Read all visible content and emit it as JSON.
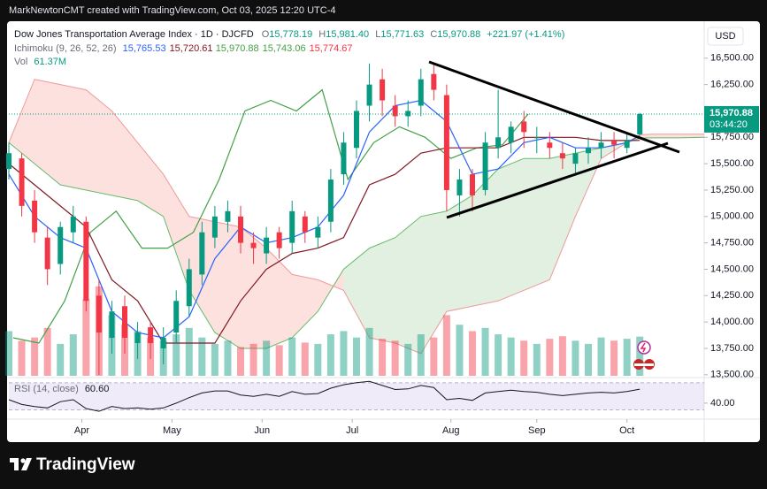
{
  "header": {
    "author_line": "MarkNewtonCMT created with TradingView.com, Oct 03, 2025 12:20 UTC-4",
    "brand": "TradingView"
  },
  "chart_data": {
    "type": "candlestick",
    "title": "Dow Jones Transportation Average Index · 1D · DJCFD",
    "legend": {
      "o_label": "O",
      "open": "15,778.19",
      "h_label": "H",
      "high": "15,981.40",
      "l_label": "L",
      "low": "15,771.63",
      "c_label": "C",
      "close": "15,970.88",
      "change": "+221.97 (+1.41%)"
    },
    "currency": "USD",
    "last_price_label": "15,970.88",
    "countdown": "03:44:20",
    "xlim": [
      0,
      162
    ],
    "xticks": [
      {
        "value": 17,
        "label": "Apr"
      },
      {
        "value": 38,
        "label": "May"
      },
      {
        "value": 59,
        "label": "Jun"
      },
      {
        "value": 80,
        "label": "Jul"
      },
      {
        "value": 103,
        "label": "Aug"
      },
      {
        "value": 123,
        "label": "Sep"
      },
      {
        "value": 144,
        "label": "Oct"
      }
    ],
    "ylim": [
      13490,
      16800
    ],
    "yticks": [
      {
        "value": 16500,
        "label": "16,500.00"
      },
      {
        "value": 16250,
        "label": "16,250.00"
      },
      {
        "value": 16000,
        "label": "16,000.00"
      },
      {
        "value": 15750,
        "label": "15,750.00"
      },
      {
        "value": 15500,
        "label": "15,500.00"
      },
      {
        "value": 15250,
        "label": "15,250.00"
      },
      {
        "value": 15000,
        "label": "15,000.00"
      },
      {
        "value": 14750,
        "label": "14,750.00"
      },
      {
        "value": 14500,
        "label": "14,500.00"
      },
      {
        "value": 14250,
        "label": "14,250.00"
      },
      {
        "value": 14000,
        "label": "14,000.00"
      },
      {
        "value": 13750,
        "label": "13,750.00"
      },
      {
        "value": 13500,
        "label": "13,500.00"
      }
    ],
    "grid": false,
    "candles": {
      "up_color": "#089981",
      "down_color": "#f23645",
      "x": [
        0,
        3,
        6,
        9,
        12,
        15,
        18,
        21,
        24,
        27,
        30,
        33,
        36,
        39,
        42,
        45,
        48,
        51,
        54,
        57,
        60,
        63,
        66,
        69,
        72,
        75,
        78,
        81,
        84,
        87,
        90,
        93,
        96,
        99,
        102,
        105,
        108,
        111,
        114,
        117,
        120,
        123,
        126,
        129,
        132,
        135,
        138,
        141,
        144,
        147
      ],
      "open": [
        15450,
        15550,
        15150,
        14800,
        14550,
        14850,
        14950,
        14250,
        13850,
        14150,
        13800,
        13950,
        13750,
        13900,
        14150,
        14450,
        14800,
        14950,
        15000,
        14750,
        14650,
        14850,
        14750,
        15000,
        14800,
        14950,
        15400,
        15650,
        16050,
        16300,
        16050,
        15950,
        16050,
        16350,
        16150,
        15200,
        15400,
        15250,
        15650,
        15700,
        15900,
        15750,
        15700,
        15600,
        15500,
        15600,
        15650,
        15720,
        15650,
        15778.19
      ],
      "high": [
        15700,
        15600,
        15250,
        14900,
        14950,
        15100,
        15000,
        14400,
        14200,
        14250,
        14000,
        14000,
        13950,
        14300,
        14600,
        14950,
        15100,
        15150,
        15100,
        14850,
        14900,
        14900,
        15150,
        15050,
        15000,
        15450,
        15800,
        16100,
        16450,
        16400,
        16150,
        16100,
        16400,
        16450,
        16250,
        15450,
        15450,
        15800,
        16200,
        15900,
        16000,
        15850,
        15800,
        15700,
        15650,
        15750,
        15800,
        15800,
        15800,
        15981.4
      ],
      "low": [
        15350,
        15000,
        14750,
        14350,
        14450,
        14750,
        14100,
        13500,
        13700,
        13700,
        13650,
        13650,
        13600,
        13800,
        14050,
        14350,
        14700,
        14850,
        14650,
        14550,
        14550,
        14600,
        14650,
        14750,
        14700,
        14850,
        15300,
        15550,
        15900,
        15950,
        15850,
        15850,
        15950,
        16100,
        15050,
        15000,
        15050,
        15200,
        15550,
        15600,
        15650,
        15600,
        15550,
        15450,
        15400,
        15500,
        15550,
        15550,
        15600,
        15771.63
      ],
      "close": [
        15600,
        15100,
        14850,
        14500,
        14900,
        15000,
        14200,
        13900,
        14100,
        13850,
        13900,
        13800,
        13850,
        14200,
        14500,
        14850,
        15000,
        15050,
        14750,
        14700,
        14800,
        14700,
        15050,
        14850,
        14900,
        15350,
        15700,
        16000,
        16250,
        16100,
        15950,
        16000,
        16300,
        16200,
        15250,
        15350,
        15200,
        15700,
        15750,
        15850,
        15800,
        15750,
        15650,
        15550,
        15600,
        15650,
        15700,
        15680,
        15720,
        15970.88
      ]
    },
    "ichimoku": {
      "label": "Ichimoku (9, 26, 52, 26)",
      "legend_values": [
        {
          "text": "15,765.53",
          "color": "#2962ff"
        },
        {
          "text": "15,720.61",
          "color": "#801922"
        },
        {
          "text": "15,970.88",
          "color": "#43a047"
        },
        {
          "text": "15,743.06",
          "color": "#43a047"
        },
        {
          "text": "15,774.67",
          "color": "#f23645"
        }
      ],
      "conversion": {
        "color": "#2962ff",
        "x": [
          0,
          6,
          12,
          18,
          24,
          30,
          36,
          42,
          48,
          54,
          60,
          66,
          72,
          78,
          84,
          90,
          96,
          102,
          108,
          114,
          120,
          126,
          132,
          138,
          144,
          147
        ],
        "values": [
          15400,
          15000,
          14800,
          14700,
          14100,
          13900,
          13850,
          14050,
          14600,
          14900,
          14750,
          14800,
          14900,
          15200,
          15800,
          16050,
          16100,
          15900,
          15400,
          15450,
          15700,
          15750,
          15650,
          15650,
          15700,
          15765.53
        ]
      },
      "base": {
        "color": "#801922",
        "x": [
          0,
          6,
          12,
          18,
          24,
          30,
          36,
          42,
          48,
          54,
          60,
          66,
          72,
          78,
          84,
          90,
          96,
          102,
          108,
          114,
          120,
          126,
          132,
          138,
          144,
          147
        ],
        "values": [
          15500,
          15300,
          15100,
          14900,
          14400,
          14200,
          13800,
          13800,
          13800,
          14200,
          14500,
          14650,
          14700,
          14800,
          15300,
          15400,
          15600,
          15650,
          15650,
          15650,
          15750,
          15750,
          15750,
          15720,
          15720,
          15720.61
        ]
      },
      "lagging": {
        "color": "#43a047",
        "x": [
          1,
          7,
          13,
          19,
          25,
          31,
          37,
          43,
          49,
          55,
          61,
          67,
          73,
          79,
          85,
          91,
          97,
          103,
          109,
          115,
          121
        ],
        "values": [
          13850,
          13800,
          14200,
          14850,
          15050,
          14700,
          14700,
          14850,
          15350,
          16000,
          16100,
          16000,
          16200,
          15350,
          15700,
          15850,
          15750,
          15550,
          15650,
          15680,
          15970.88
        ]
      },
      "span_a": {
        "color": "#66bb6a",
        "x": [
          0,
          6,
          12,
          18,
          24,
          30,
          36,
          42,
          48,
          54,
          60,
          66,
          72,
          78,
          84,
          90,
          96,
          102,
          108,
          114,
          120,
          126,
          132,
          138,
          144,
          147,
          150,
          156,
          162
        ],
        "values": [
          15700,
          15500,
          15300,
          15250,
          15200,
          15150,
          15000,
          14300,
          13900,
          13750,
          13750,
          13850,
          14100,
          14500,
          14700,
          14800,
          15000,
          15050,
          15200,
          15450,
          15550,
          15550,
          15600,
          15650,
          15700,
          15743.06,
          15745,
          15745,
          15750
        ]
      },
      "span_b": {
        "color": "#ef9a9a",
        "x": [
          0,
          6,
          12,
          18,
          24,
          30,
          36,
          42,
          48,
          54,
          60,
          66,
          72,
          78,
          84,
          90,
          96,
          102,
          108,
          114,
          120,
          126,
          132,
          138,
          144,
          147,
          150,
          156,
          162
        ],
        "values": [
          15700,
          16300,
          16250,
          16200,
          16000,
          15700,
          15400,
          15000,
          14950,
          14900,
          14700,
          14450,
          14400,
          14300,
          13850,
          13800,
          13700,
          14100,
          14150,
          14200,
          14300,
          14400,
          15000,
          15550,
          15700,
          15774.67,
          15780,
          15780,
          15780
        ]
      },
      "cloud_up_color": "rgba(67,160,71,0.16)",
      "cloud_down_color": "rgba(244,67,54,0.16)"
    },
    "volume": {
      "label": "Vol",
      "value_label": "61.37M",
      "ylim": [
        0,
        180
      ],
      "up_color": "rgba(8,153,129,0.45)",
      "down_color": "rgba(242,54,69,0.45)",
      "values": [
        70,
        55,
        60,
        75,
        50,
        65,
        120,
        140,
        95,
        80,
        70,
        60,
        55,
        65,
        75,
        60,
        50,
        55,
        45,
        50,
        55,
        48,
        60,
        52,
        50,
        65,
        70,
        60,
        75,
        58,
        55,
        50,
        65,
        60,
        95,
        80,
        70,
        75,
        65,
        60,
        55,
        50,
        58,
        62,
        55,
        50,
        60,
        55,
        58,
        61.37
      ]
    },
    "rsi": {
      "label": "RSI (14, close)",
      "value_label": "60.60",
      "color": "#7e57c2",
      "ylim": [
        19,
        75
      ],
      "band": [
        30,
        70
      ],
      "yticks": [
        {
          "value": 40,
          "label": "40.00"
        }
      ],
      "values": [
        45,
        38,
        35,
        33,
        42,
        45,
        32,
        28,
        35,
        32,
        33,
        31,
        33,
        40,
        48,
        55,
        58,
        58,
        52,
        50,
        53,
        50,
        57,
        53,
        54,
        62,
        67,
        70,
        72,
        66,
        60,
        61,
        66,
        63,
        45,
        47,
        44,
        55,
        57,
        59,
        57,
        56,
        53,
        51,
        53,
        55,
        56,
        55,
        57,
        60.6
      ]
    }
  }
}
